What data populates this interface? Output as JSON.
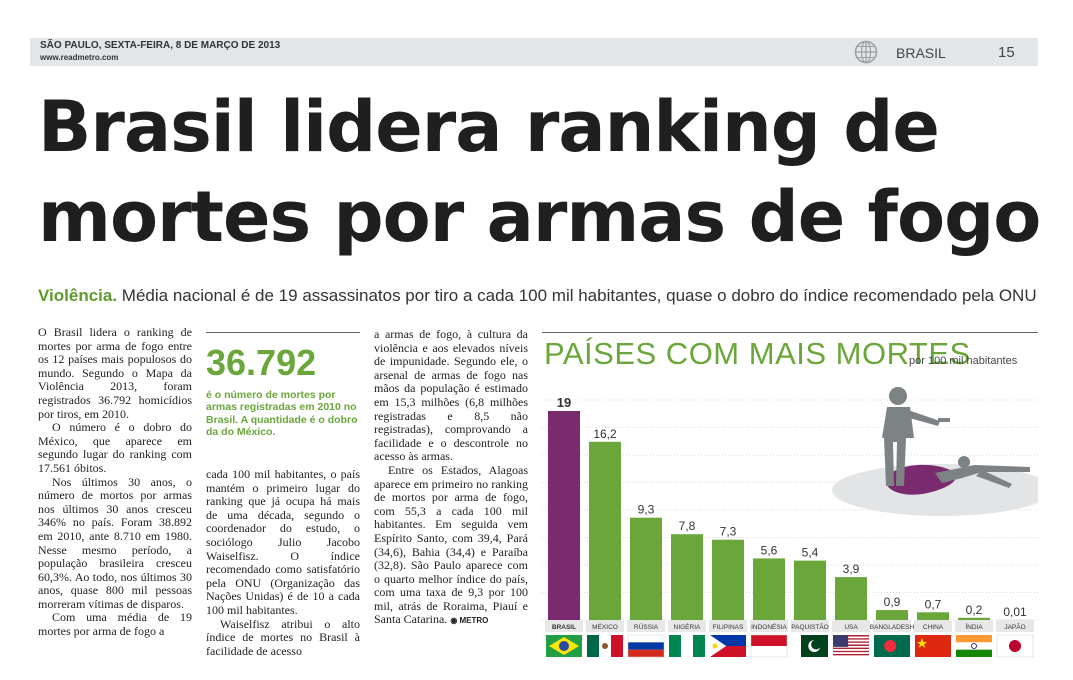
{
  "header": {
    "dateline": "SÃO PAULO, SEXTA-FEIRA, 8 DE MARÇO DE 2013",
    "website": "www.readmetro.com",
    "section": "BRASIL",
    "page_number": "15"
  },
  "article": {
    "headline_line1": "Brasil lidera ranking de",
    "headline_line2": "mortes por armas de fogo",
    "kicker": "Violência.",
    "subhead": "Média nacional é de 19 assassinatos por tiro a cada 100 mil habitantes, quase o dobro do índice recomendado pela ONU",
    "col1": [
      "O Brasil lidera o ranking de mortes por arma de fogo entre os 12 países mais populosos do mundo. Segundo o Mapa da Violência 2013, foram registrados 36.792 homicídios por tiros, em 2010.",
      "O número é o dobro do México, que aparece em segundo lugar do ranking com 17.561 óbitos.",
      "Nos últimos 30 anos, o número de mortos por armas nos últimos 30 anos cresceu 346% no país. Foram 38.892 em 2010, ante 8.710 em 1980. Nesse mesmo período, a população brasileira cresceu 60,3%. Ao todo, nos últimos 30 anos, quase 800 mil pessoas morreram vítimas de disparos.",
      "Com uma média de 19 mortes por arma de fogo a"
    ],
    "stat_number": "36.792",
    "stat_description": "é o número de mortes por armas registradas em 2010 no Brasil. A quantidade é o dobro da do México.",
    "col2": [
      "cada 100 mil habitantes, o país mantém o primeiro lugar do ranking que já ocupa há mais de uma década, segundo o coordenador do estudo, o sociólogo Julio Jacobo Waiselfisz. O índice recomendado como satisfatório pela ONU (Organização das Nações Unidas) é de 10 a cada 100 mil habitantes.",
      "Waiselfisz atribui o alto índice de mortes no Brasil à facilidade de acesso"
    ],
    "col3": [
      "a armas de fogo, à cultura da violência e aos elevados níveis de impunidade. Segundo ele, o arsenal de armas de fogo nas mãos da população é estimado em 15,3 milhões (6,8 milhões registradas e 8,5 não registradas), comprovando a facilidade e o descontrole no acesso às armas.",
      "Entre os Estados, Alagoas aparece em primeiro no ranking de mortos por arma de fogo, com 55,3 a cada 100 mil habitantes. Em seguida vem Espírito Santo, com 39,4, Pará (34,6), Bahia (34,4) e Paraíba (32,8). São Paulo aparece com o quarto melhor índice do país, com uma taxa de 9,3 por 100 mil, atrás de Roraima, Piauí e Santa Catarina."
    ],
    "signature": "METRO"
  },
  "chart_data": {
    "type": "bar",
    "title": "PAÍSES COM MAIS MORTES",
    "subtitle": "por 100 mil habitantes",
    "categories": [
      "BRASIL",
      "MÉXICO",
      "RÚSSIA",
      "NIGÉRIA",
      "FILIPINAS",
      "INDONÉSIA",
      "PAQUISTÃO",
      "USA",
      "BANGLADESH",
      "CHINA",
      "ÍNDIA",
      "JAPÃO"
    ],
    "values": [
      19,
      16.2,
      9.3,
      7.8,
      7.3,
      5.6,
      5.4,
      3.9,
      0.9,
      0.7,
      0.2,
      0.01
    ],
    "value_labels": [
      "19",
      "16,2",
      "9,3",
      "7,8",
      "7,3",
      "5,6",
      "5,4",
      "3,9",
      "0,9",
      "0,7",
      "0,2",
      "0,01"
    ],
    "ylim": [
      0,
      20
    ],
    "grid": true,
    "highlight_category": "BRASIL",
    "colors": {
      "highlight": "#7a2a6e",
      "bar": "#6aa63a",
      "grid": "#cfcfcf",
      "figure": "#7d8285",
      "blood": "#7a2a6e",
      "shadow": "#e2e4e5"
    }
  }
}
